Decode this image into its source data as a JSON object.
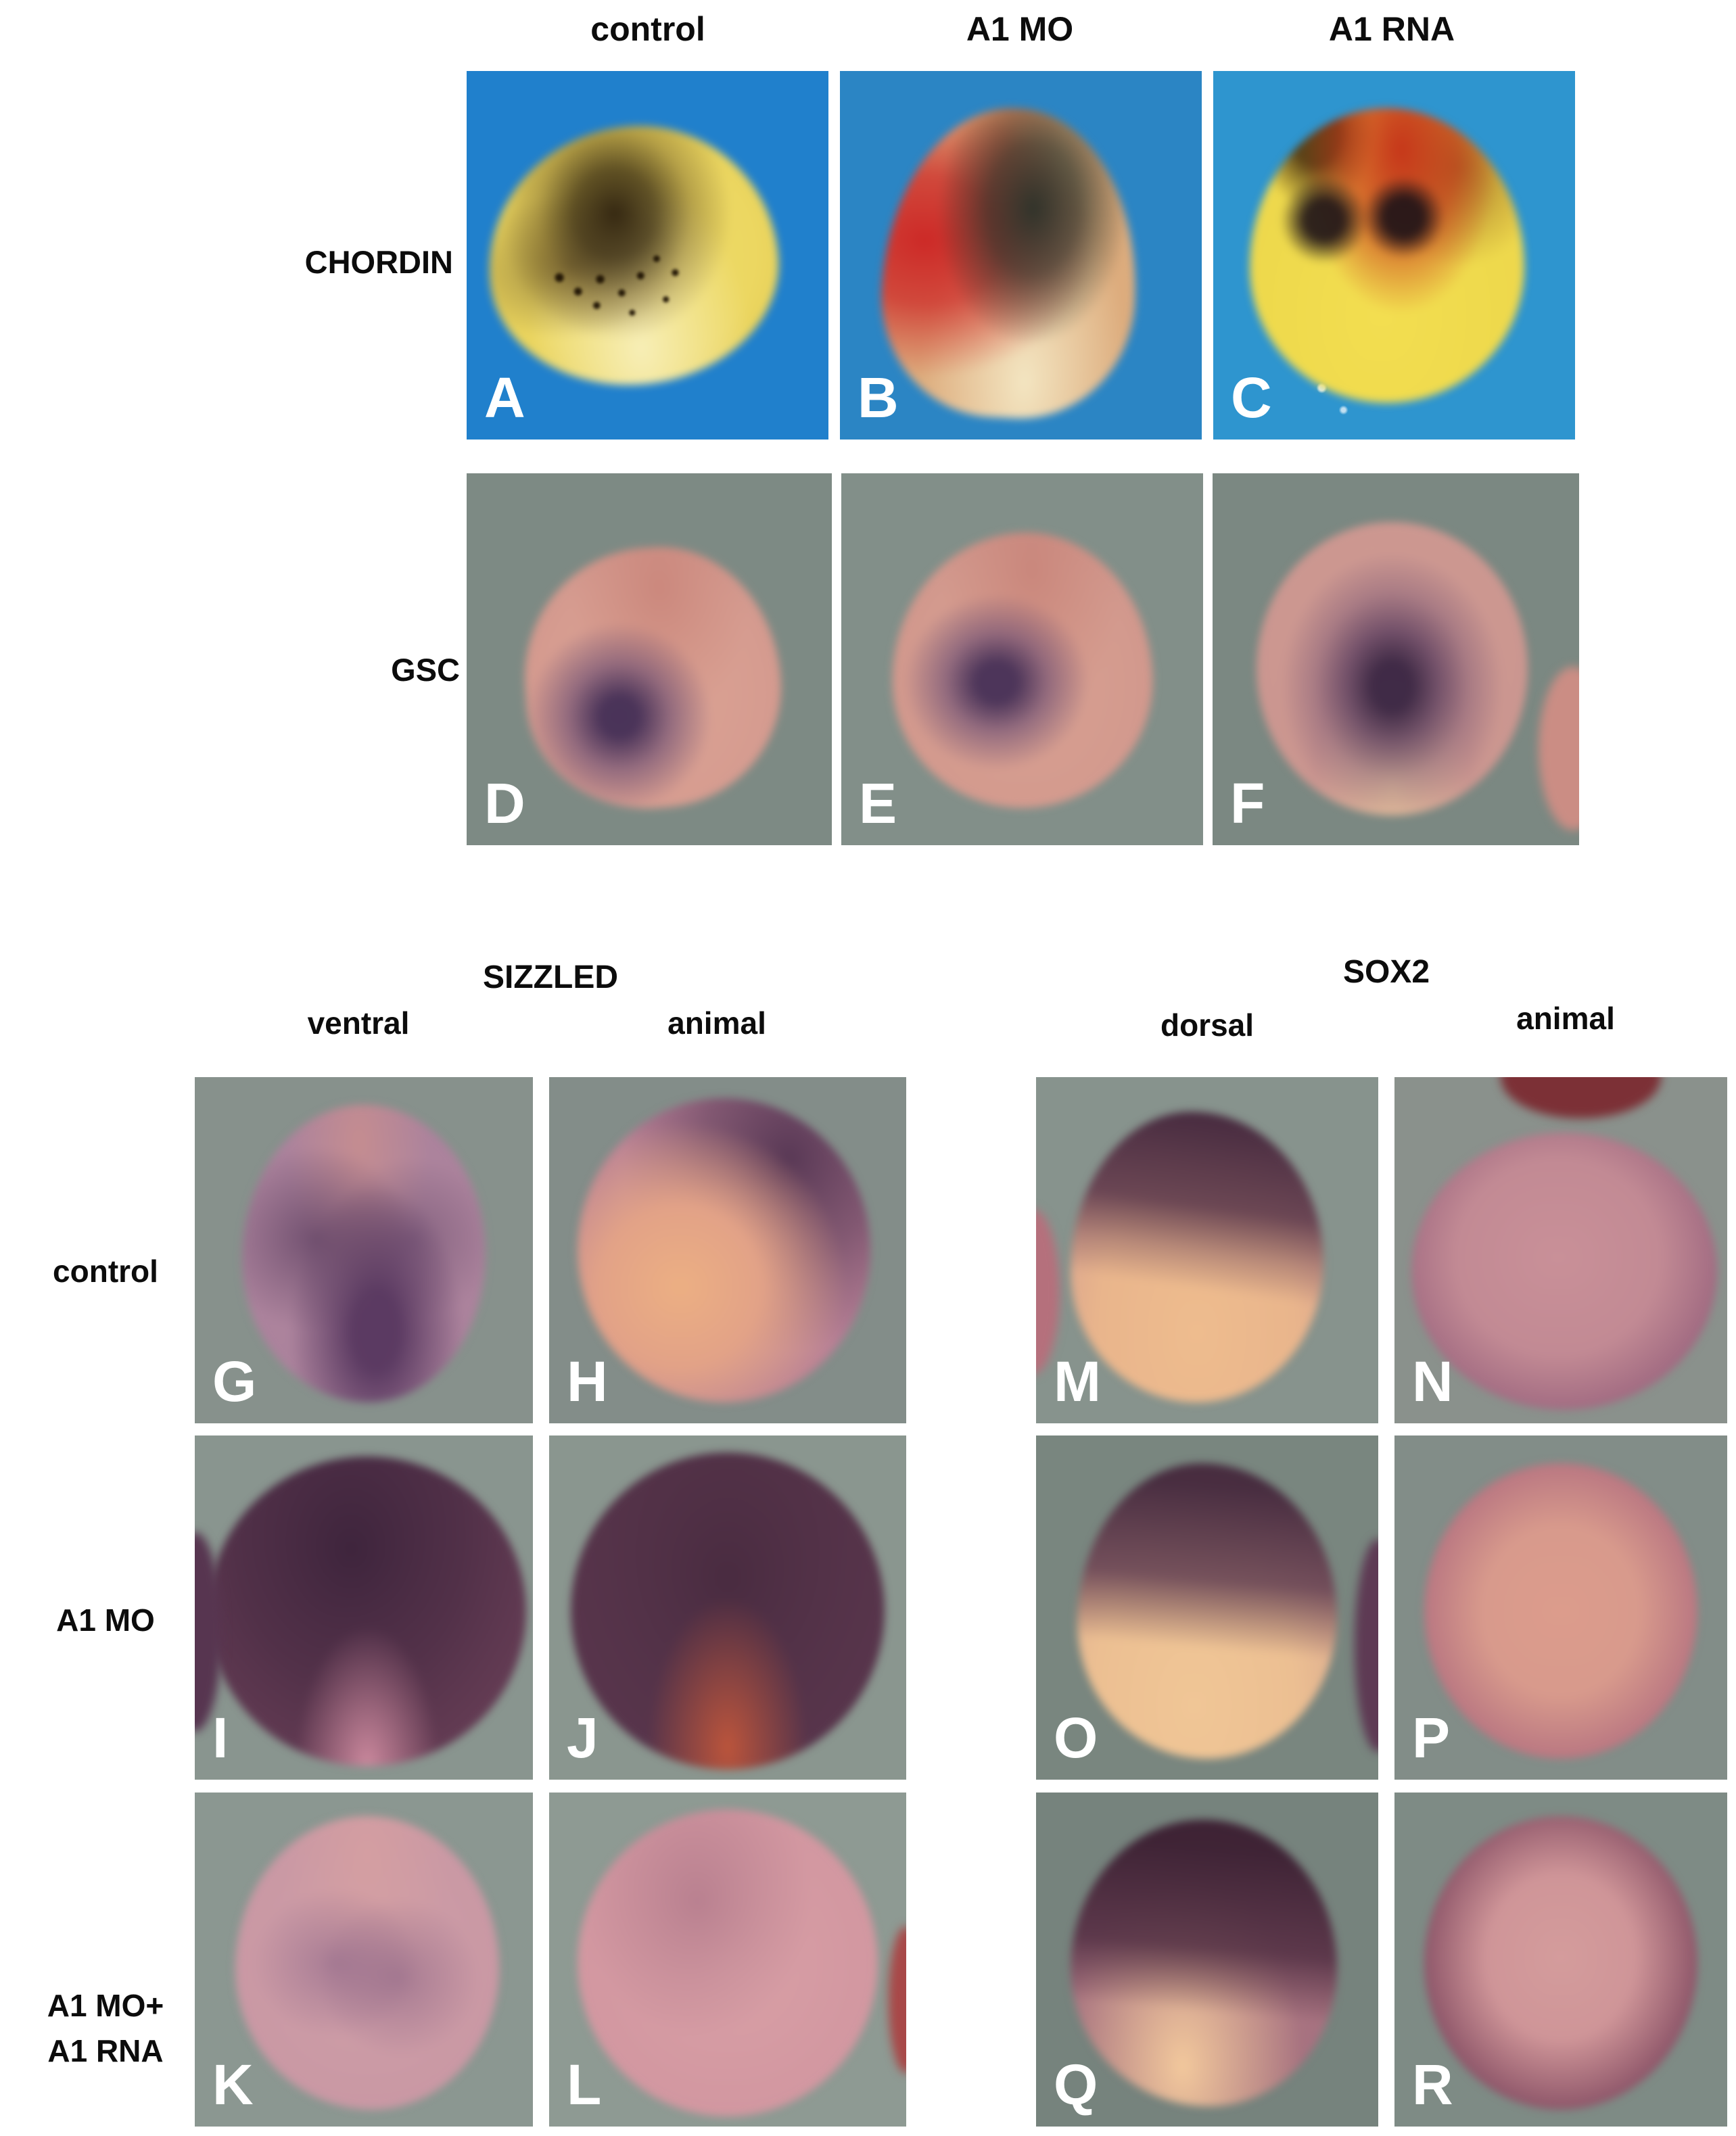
{
  "top": {
    "col_headers": [
      "control",
      "A1 MO",
      "A1 RNA"
    ],
    "genes": [
      "CHORDIN",
      "GSC"
    ]
  },
  "bottom": {
    "groups": [
      {
        "gene": "SIZZLED",
        "cols": [
          "ventral",
          "animal"
        ]
      },
      {
        "gene": "SOX2",
        "cols": [
          "dorsal",
          "animal"
        ]
      }
    ],
    "row_labels": [
      {
        "lines": [
          "control"
        ]
      },
      {
        "lines": [
          "A1 MO"
        ]
      },
      {
        "lines": [
          "A1 MO+",
          "A1 RNA"
        ]
      }
    ]
  },
  "panel_letters": {
    "A": "A",
    "B": "B",
    "C": "C",
    "D": "D",
    "E": "E",
    "F": "F",
    "G": "G",
    "H": "H",
    "I": "I",
    "J": "J",
    "K": "K",
    "L": "L",
    "M": "M",
    "N": "N",
    "O": "O",
    "P": "P",
    "Q": "Q",
    "R": "R"
  },
  "colors": {
    "page_bg": "#ffffff",
    "label_text": "#0c0c0c",
    "panel_letter": "#ffffff",
    "blue_bg_panel_a": "#2080cc",
    "blue_bg_panel_b": "#2b85c4",
    "cyan_bg_panel_c": "#2e95cf",
    "gray_green_bg": "#7d8a84",
    "gray_bg_lower": "#87918c",
    "embryo_yellow": "#ecd761",
    "embryo_red_stain": "#cc2222",
    "embryo_dark_stain": "#3a2a20",
    "embryo_pink": "#d69c90",
    "embryo_purple_stain": "#5e3850"
  }
}
